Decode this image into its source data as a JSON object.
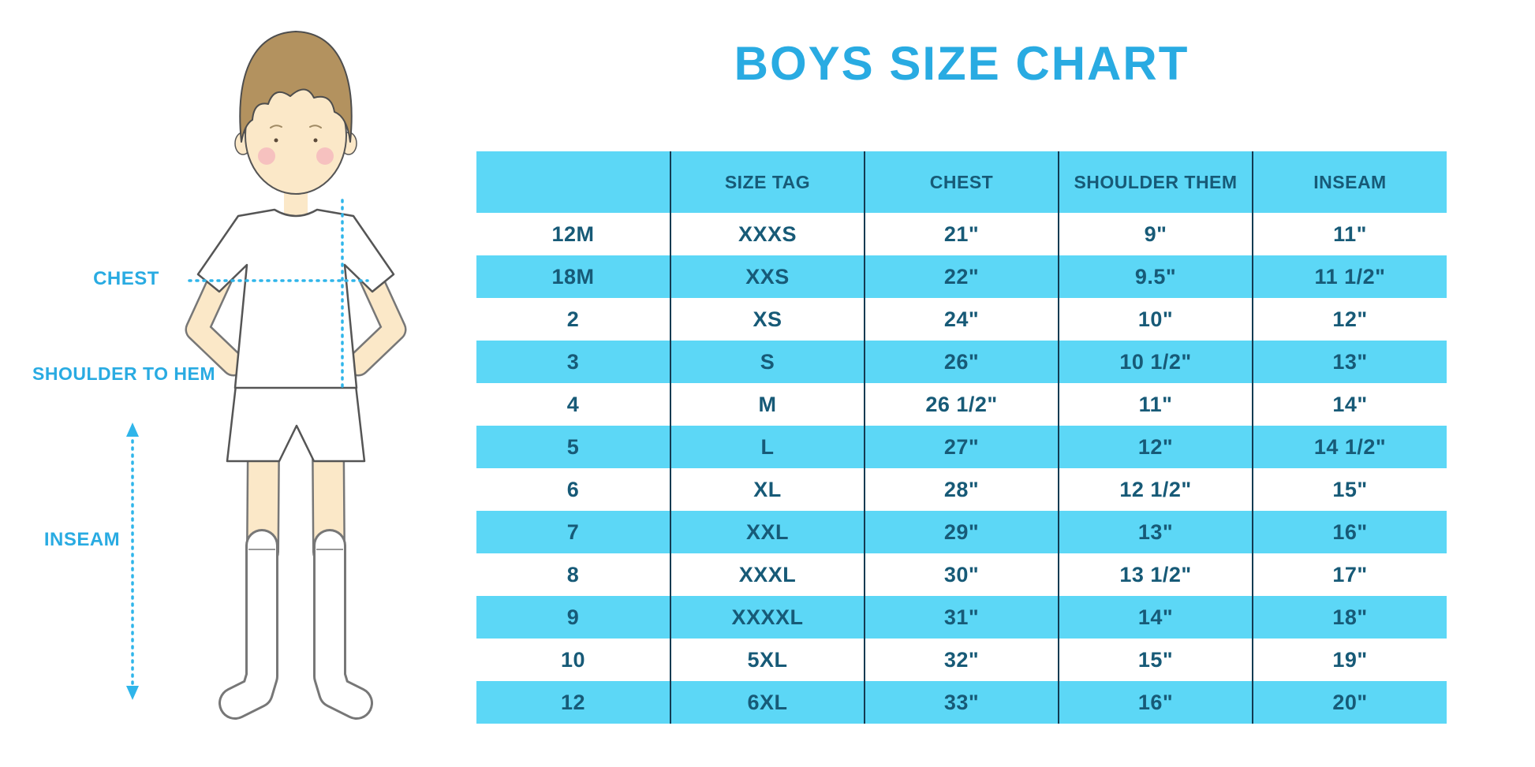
{
  "page": {
    "title": "BOYS SIZE CHART"
  },
  "figure": {
    "description": "boy-in-white-tee-and-shorts-with-measurement-guides",
    "labels": {
      "chest": "CHEST",
      "shoulder_to_hem": "SHOULDER TO HEM",
      "inseam": "INSEAM"
    }
  },
  "chart_data": {
    "type": "table",
    "title": "BOYS SIZE CHART",
    "columns": [
      "",
      "SIZE TAG",
      "CHEST",
      "SHOULDER THEM",
      "INSEAM"
    ],
    "rows": [
      [
        "12M",
        "XXXS",
        "21\"",
        "9\"",
        "11\""
      ],
      [
        "18M",
        "XXS",
        "22\"",
        "9.5\"",
        "11 1/2\""
      ],
      [
        "2",
        "XS",
        "24\"",
        "10\"",
        "12\""
      ],
      [
        "3",
        "S",
        "26\"",
        "10 1/2\"",
        "13\""
      ],
      [
        "4",
        "M",
        "26 1/2\"",
        "11\"",
        "14\""
      ],
      [
        "5",
        "L",
        "27\"",
        "12\"",
        "14 1/2\""
      ],
      [
        "6",
        "XL",
        "28\"",
        "12 1/2\"",
        "15\""
      ],
      [
        "7",
        "XXL",
        "29\"",
        "13\"",
        "16\""
      ],
      [
        "8",
        "XXXL",
        "30\"",
        "13 1/2\"",
        "17\""
      ],
      [
        "9",
        "XXXXL",
        "31\"",
        "14\"",
        "18\""
      ],
      [
        "10",
        "5XL",
        "32\"",
        "15\"",
        "19\""
      ],
      [
        "12",
        "6XL",
        "33\"",
        "16\"",
        "20\""
      ]
    ],
    "layout": {
      "grid": "alternating-rows",
      "legend_position": "none",
      "column_count": 5
    },
    "colors": {
      "accent_title": "#29ABE2",
      "row_highlight": "#5CD7F6",
      "table_text": "#175A77",
      "column_divider": "#123B52",
      "measure_line": "#2FB5EA",
      "hair": "#B3925F",
      "skin": "#FBE8C8"
    }
  }
}
